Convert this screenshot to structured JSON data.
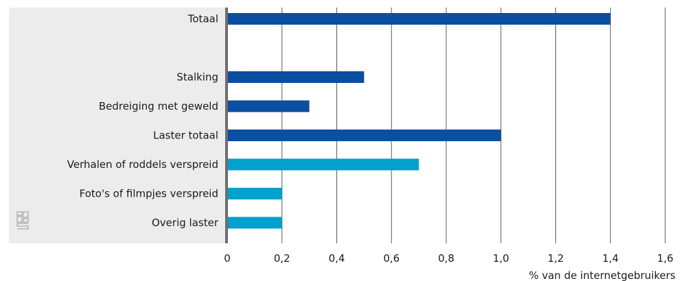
{
  "chart_data": {
    "type": "bar",
    "orientation": "horizontal",
    "categories": [
      "Totaal",
      "",
      "Stalking",
      "Bedreiging met geweld",
      "Laster totaal",
      "Verhalen of roddels verspreid",
      "Foto's of filmpjes verspreid",
      "Overig laster"
    ],
    "values": [
      1.4,
      null,
      0.5,
      0.3,
      1.0,
      0.7,
      0.2,
      0.2
    ],
    "bar_colors": [
      "#0b4ea2",
      null,
      "#0b4ea2",
      "#0b4ea2",
      "#0b4ea2",
      "#00a1cd",
      "#00a1cd",
      "#00a1cd"
    ],
    "xlim": [
      0,
      1.6
    ],
    "xticks": [
      0,
      0.2,
      0.4,
      0.6,
      0.8,
      1.0,
      1.2,
      1.4,
      1.6
    ],
    "xtick_labels": [
      "0",
      "0,2",
      "0,4",
      "0,6",
      "0,8",
      "1,0",
      "1,2",
      "1,4",
      "1,6"
    ],
    "xlabel": "% van de internetgebruikers",
    "grid": "vertical",
    "colors": {
      "label_panel": "#ececec",
      "axis_line": "#6d6d6d",
      "grid": "#5a5a5a",
      "logo": "#a8a8a8"
    },
    "logo_icon": "cbs-logo-icon"
  }
}
